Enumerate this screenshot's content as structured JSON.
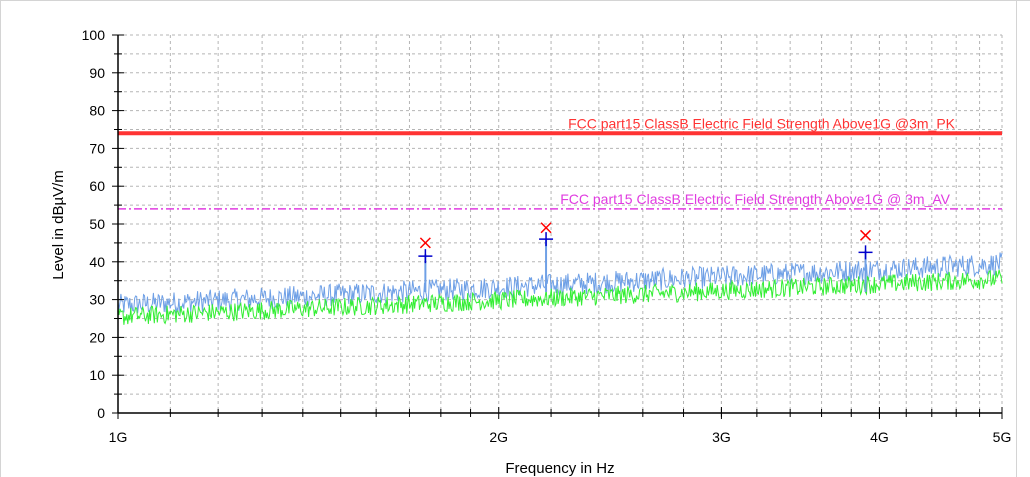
{
  "chart_data": {
    "type": "line",
    "xlabel": "Frequency in Hz",
    "ylabel": "Level in dBµV/m",
    "x_scale": "log",
    "xlim": [
      1000000000,
      5000000000
    ],
    "ylim": [
      0,
      100
    ],
    "x_ticks": [
      {
        "value": 1000000000,
        "label": "1G"
      },
      {
        "value": 2000000000,
        "label": "2G"
      },
      {
        "value": 3000000000,
        "label": "3G"
      },
      {
        "value": 4000000000,
        "label": "4G"
      },
      {
        "value": 5000000000,
        "label": "5G"
      }
    ],
    "y_ticks": [
      0,
      10,
      20,
      30,
      40,
      50,
      60,
      70,
      80,
      90,
      100
    ],
    "grid": true,
    "limit_lines": [
      {
        "label": "FCC part15 ClassB Electric Field Strength Above1G @3m_PK",
        "value": 74,
        "color": "#ff3333",
        "style": "solid"
      },
      {
        "label": "FCC part15 ClassB Electric Field Strength Above1G @ 3m_AV",
        "value": 54,
        "color": "#e03ce0",
        "style": "dashdot"
      }
    ],
    "series": [
      {
        "color": "#6fa0e6",
        "kind": "noise-band",
        "start_level": 28.5,
        "end_level": 39.5,
        "spread": 3
      },
      {
        "color": "#33ee33",
        "kind": "noise-band",
        "start_level": 25.5,
        "end_level": 35.5,
        "spread": 2.5
      }
    ],
    "spikes": [
      {
        "x": 1750000000,
        "y": 42,
        "color": "#6fa0e6"
      },
      {
        "x": 2180000000,
        "y": 46,
        "color": "#6fa0e6"
      },
      {
        "x": 3900000000,
        "y": 43,
        "color": "#6fa0e6"
      }
    ],
    "peak_markers": [
      {
        "x": 1750000000,
        "y": 45,
        "symbol": "x",
        "color": "#ff0000"
      },
      {
        "x": 2180000000,
        "y": 49,
        "symbol": "x",
        "color": "#ff0000"
      },
      {
        "x": 3900000000,
        "y": 47,
        "symbol": "x",
        "color": "#ff0000"
      }
    ],
    "avg_markers": [
      {
        "x": 1750000000,
        "y": 41.5,
        "symbol": "+",
        "color": "#0000cc"
      },
      {
        "x": 2180000000,
        "y": 46,
        "symbol": "+",
        "color": "#0000cc"
      },
      {
        "x": 3900000000,
        "y": 42.5,
        "symbol": "+",
        "color": "#0000cc"
      }
    ]
  }
}
